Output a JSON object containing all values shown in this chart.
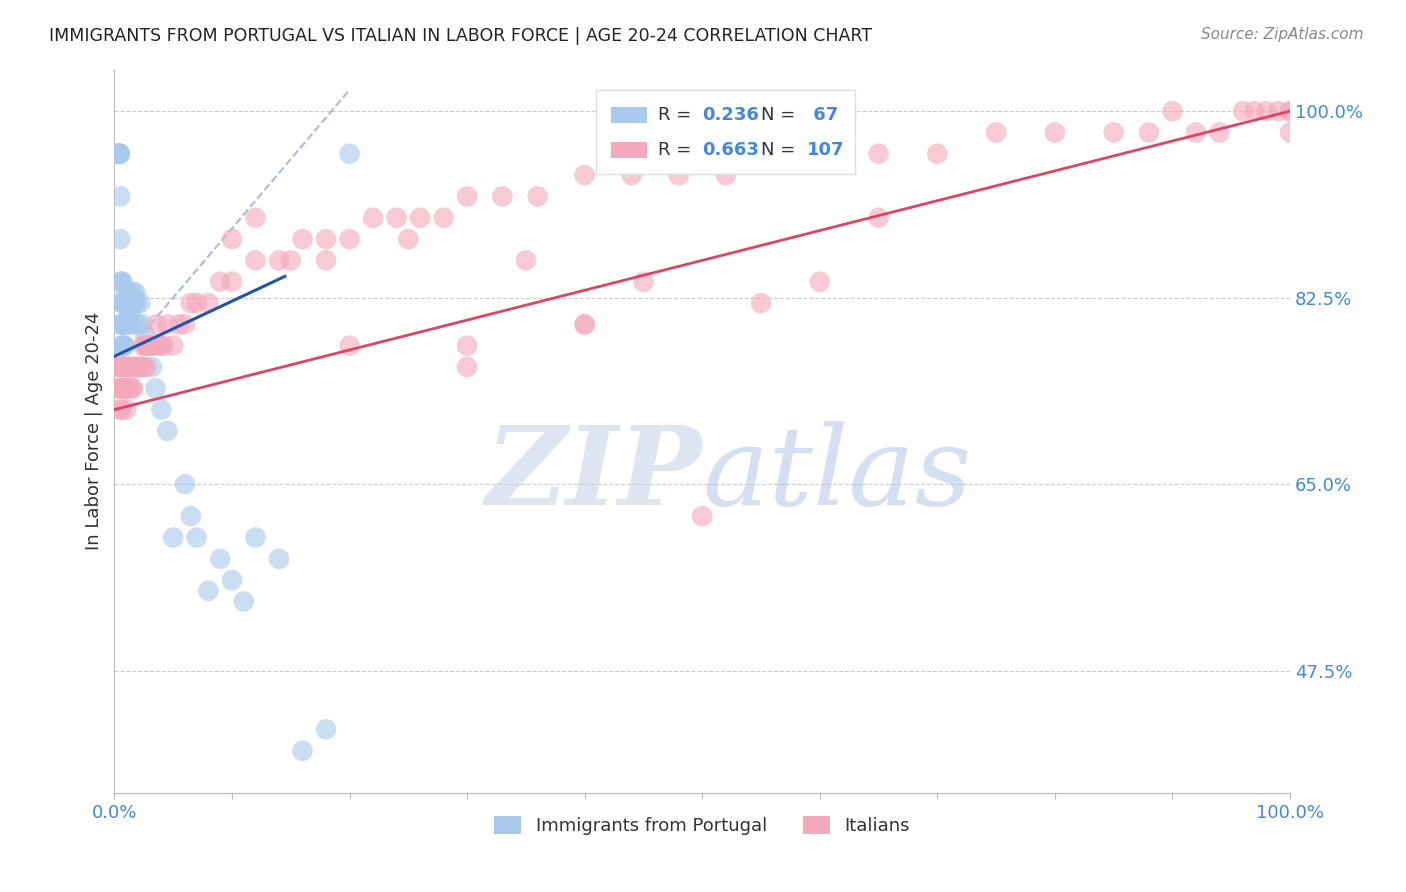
{
  "title": "IMMIGRANTS FROM PORTUGAL VS ITALIAN IN LABOR FORCE | AGE 20-24 CORRELATION CHART",
  "source": "Source: ZipAtlas.com",
  "ylabel": "In Labor Force | Age 20-24",
  "ytick_labels": [
    "100.0%",
    "82.5%",
    "65.0%",
    "47.5%"
  ],
  "ytick_values": [
    1.0,
    0.825,
    0.65,
    0.475
  ],
  "xlim": [
    0.0,
    1.0
  ],
  "ylim": [
    0.36,
    1.04
  ],
  "blue_color": "#A8C8EC",
  "pink_color": "#F4A8BC",
  "blue_line_color": "#2255AA",
  "pink_line_color": "#DD4466",
  "dashed_line_color": "#AABBDD",
  "title_color": "#222222",
  "axis_tick_color": "#4488DD",
  "legend_border_color": "#DDDDDD",
  "watermark_zip": "#C8D4E8",
  "watermark_atlas": "#B8CCE8",
  "blue_pts_x": [
    0.002,
    0.003,
    0.003,
    0.003,
    0.004,
    0.004,
    0.004,
    0.004,
    0.004,
    0.005,
    0.005,
    0.005,
    0.005,
    0.005,
    0.005,
    0.006,
    0.006,
    0.006,
    0.006,
    0.007,
    0.007,
    0.007,
    0.007,
    0.008,
    0.008,
    0.008,
    0.009,
    0.009,
    0.009,
    0.01,
    0.01,
    0.01,
    0.011,
    0.011,
    0.012,
    0.012,
    0.013,
    0.013,
    0.014,
    0.015,
    0.015,
    0.016,
    0.017,
    0.018,
    0.019,
    0.02,
    0.022,
    0.024,
    0.026,
    0.028,
    0.032,
    0.035,
    0.04,
    0.045,
    0.05,
    0.06,
    0.065,
    0.07,
    0.08,
    0.09,
    0.1,
    0.11,
    0.12,
    0.14,
    0.16,
    0.18,
    0.2
  ],
  "blue_pts_y": [
    0.96,
    0.96,
    0.96,
    0.96,
    0.96,
    0.96,
    0.96,
    0.96,
    0.96,
    0.96,
    0.92,
    0.88,
    0.84,
    0.8,
    0.76,
    0.84,
    0.82,
    0.8,
    0.78,
    0.84,
    0.82,
    0.8,
    0.78,
    0.82,
    0.8,
    0.78,
    0.82,
    0.8,
    0.78,
    0.83,
    0.82,
    0.8,
    0.82,
    0.8,
    0.83,
    0.81,
    0.82,
    0.8,
    0.81,
    0.82,
    0.8,
    0.83,
    0.82,
    0.83,
    0.82,
    0.8,
    0.82,
    0.8,
    0.79,
    0.78,
    0.76,
    0.74,
    0.72,
    0.7,
    0.6,
    0.65,
    0.62,
    0.6,
    0.55,
    0.58,
    0.56,
    0.54,
    0.6,
    0.58,
    0.4,
    0.42,
    0.96
  ],
  "pink_pts_x": [
    0.003,
    0.004,
    0.004,
    0.005,
    0.005,
    0.005,
    0.006,
    0.006,
    0.006,
    0.007,
    0.007,
    0.008,
    0.008,
    0.009,
    0.009,
    0.01,
    0.01,
    0.01,
    0.011,
    0.011,
    0.012,
    0.012,
    0.013,
    0.013,
    0.014,
    0.015,
    0.015,
    0.016,
    0.016,
    0.017,
    0.018,
    0.019,
    0.02,
    0.021,
    0.022,
    0.023,
    0.024,
    0.025,
    0.026,
    0.027,
    0.028,
    0.03,
    0.032,
    0.034,
    0.036,
    0.038,
    0.04,
    0.042,
    0.045,
    0.05,
    0.055,
    0.06,
    0.065,
    0.07,
    0.08,
    0.09,
    0.1,
    0.12,
    0.14,
    0.16,
    0.18,
    0.2,
    0.22,
    0.24,
    0.26,
    0.28,
    0.3,
    0.33,
    0.36,
    0.4,
    0.44,
    0.48,
    0.52,
    0.56,
    0.6,
    0.65,
    0.7,
    0.75,
    0.8,
    0.85,
    0.88,
    0.9,
    0.92,
    0.94,
    0.96,
    0.97,
    0.98,
    0.99,
    1.0,
    1.0,
    1.0,
    0.5,
    0.12,
    0.15,
    0.18,
    0.25,
    0.3,
    0.35,
    0.4,
    0.45,
    0.55,
    0.6,
    0.65,
    0.1,
    0.2,
    0.3,
    0.4
  ],
  "pink_pts_y": [
    0.74,
    0.76,
    0.74,
    0.76,
    0.74,
    0.72,
    0.76,
    0.74,
    0.72,
    0.76,
    0.74,
    0.76,
    0.74,
    0.76,
    0.74,
    0.76,
    0.74,
    0.72,
    0.76,
    0.74,
    0.76,
    0.74,
    0.76,
    0.74,
    0.76,
    0.76,
    0.74,
    0.76,
    0.74,
    0.76,
    0.76,
    0.76,
    0.76,
    0.76,
    0.76,
    0.76,
    0.78,
    0.76,
    0.78,
    0.76,
    0.78,
    0.78,
    0.78,
    0.78,
    0.8,
    0.78,
    0.78,
    0.78,
    0.8,
    0.78,
    0.8,
    0.8,
    0.82,
    0.82,
    0.82,
    0.84,
    0.84,
    0.86,
    0.86,
    0.88,
    0.88,
    0.88,
    0.9,
    0.9,
    0.9,
    0.9,
    0.92,
    0.92,
    0.92,
    0.94,
    0.94,
    0.94,
    0.94,
    0.96,
    0.96,
    0.96,
    0.96,
    0.98,
    0.98,
    0.98,
    0.98,
    1.0,
    0.98,
    0.98,
    1.0,
    1.0,
    1.0,
    1.0,
    1.0,
    1.0,
    0.98,
    0.62,
    0.9,
    0.86,
    0.86,
    0.88,
    0.78,
    0.86,
    0.8,
    0.84,
    0.82,
    0.84,
    0.9,
    0.88,
    0.78,
    0.76,
    0.8
  ],
  "blue_line_x": [
    0.0,
    0.145
  ],
  "blue_line_y": [
    0.77,
    0.845
  ],
  "pink_line_x": [
    0.0,
    1.0
  ],
  "pink_line_y": [
    0.72,
    1.0
  ],
  "dash_line_x": [
    0.0,
    0.2
  ],
  "dash_line_y": [
    0.76,
    1.02
  ]
}
